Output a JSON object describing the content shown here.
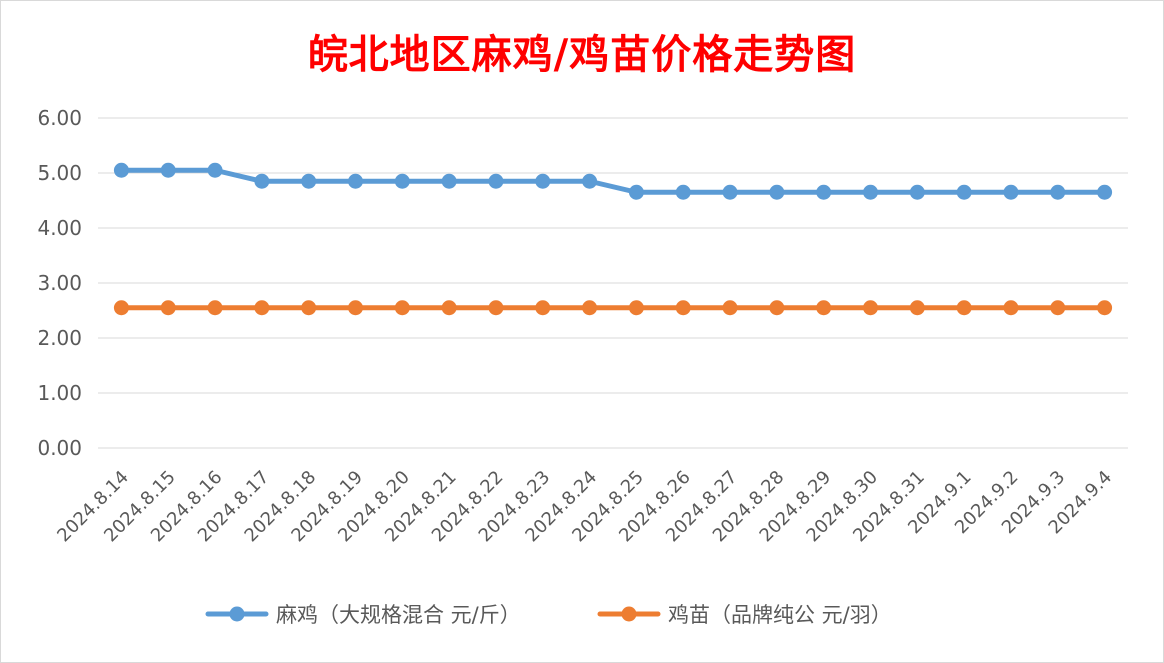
{
  "chart_data": {
    "type": "line",
    "title": "皖北地区麻鸡/鸡苗价格走势图",
    "categories": [
      "2024.8.14",
      "2024.8.15",
      "2024.8.16",
      "2024.8.17",
      "2024.8.18",
      "2024.8.19",
      "2024.8.20",
      "2024.8.21",
      "2024.8.22",
      "2024.8.23",
      "2024.8.24",
      "2024.8.25",
      "2024.8.26",
      "2024.8.27",
      "2024.8.28",
      "2024.8.29",
      "2024.8.30",
      "2024.8.31",
      "2024.9.1",
      "2024.9.2",
      "2024.9.3",
      "2024.9.4"
    ],
    "series": [
      {
        "name": "麻鸡（大规格混合 元/斤）",
        "color": "#5b9bd5",
        "values": [
          5.05,
          5.05,
          5.05,
          4.85,
          4.85,
          4.85,
          4.85,
          4.85,
          4.85,
          4.85,
          4.85,
          4.65,
          4.65,
          4.65,
          4.65,
          4.65,
          4.65,
          4.65,
          4.65,
          4.65,
          4.65,
          4.65
        ]
      },
      {
        "name": "鸡苗（品牌纯公 元/羽）",
        "color": "#ed7d31",
        "values": [
          2.55,
          2.55,
          2.55,
          2.55,
          2.55,
          2.55,
          2.55,
          2.55,
          2.55,
          2.55,
          2.55,
          2.55,
          2.55,
          2.55,
          2.55,
          2.55,
          2.55,
          2.55,
          2.55,
          2.55,
          2.55,
          2.55
        ]
      }
    ],
    "ylim": [
      0,
      6
    ],
    "yticks": [
      "0.00",
      "1.00",
      "2.00",
      "3.00",
      "4.00",
      "5.00",
      "6.00"
    ],
    "ytick_values": [
      0,
      1,
      2,
      3,
      4,
      5,
      6
    ],
    "grid": true,
    "legend_position": "bottom"
  }
}
